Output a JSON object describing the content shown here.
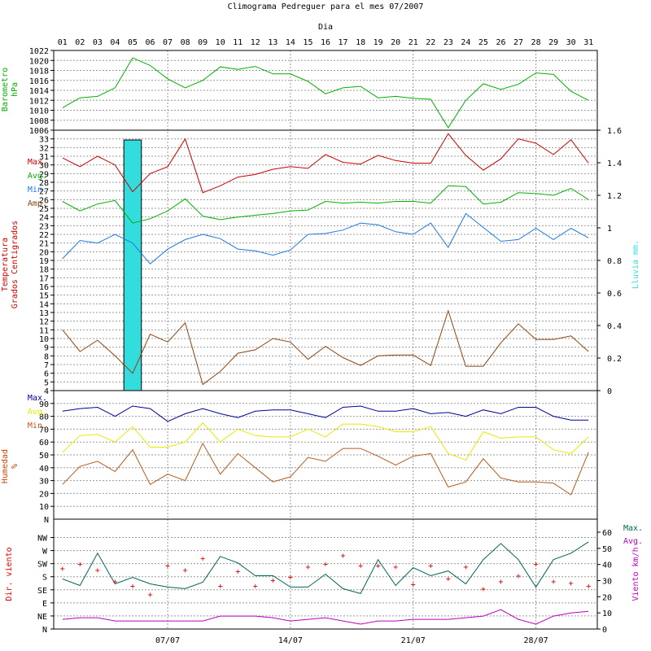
{
  "chart_data": {
    "type": "line",
    "title": "Climograma Pedreguer para el mes 07/2007",
    "x_label": "Dia",
    "days": [
      "01",
      "02",
      "03",
      "04",
      "05",
      "06",
      "07",
      "08",
      "09",
      "10",
      "11",
      "12",
      "13",
      "14",
      "15",
      "16",
      "17",
      "18",
      "19",
      "20",
      "21",
      "22",
      "23",
      "24",
      "25",
      "26",
      "27",
      "28",
      "29",
      "30",
      "31"
    ],
    "week_labels": [
      "07/07",
      "14/07",
      "21/07",
      "28/07"
    ],
    "grid": true,
    "panels": [
      {
        "id": "pressure",
        "y_label": [
          "Barometro",
          "hPa"
        ],
        "ylim": [
          1006,
          1022
        ],
        "ticks": [
          1006,
          1008,
          1010,
          1012,
          1014,
          1016,
          1018,
          1020,
          1022
        ],
        "series": [
          {
            "name": "",
            "color": "#00b000",
            "values": [
              1010.5,
              1012.5,
              1012.8,
              1014.5,
              1020.5,
              1019.0,
              1016.3,
              1014.5,
              1016.0,
              1018.7,
              1018.2,
              1018.8,
              1017.3,
              1017.3,
              1015.8,
              1013.3,
              1014.5,
              1014.8,
              1012.5,
              1012.8,
              1012.4,
              1012.2,
              1006.5,
              1012.0,
              1015.3,
              1014.2,
              1015.2,
              1017.5,
              1017.2,
              1013.8,
              1012.0
            ]
          }
        ]
      },
      {
        "id": "temperature",
        "y_label": [
          "Temperatura",
          "Grados Centigrados"
        ],
        "ylim": [
          4,
          34
        ],
        "ticks": [
          4,
          5,
          6,
          7,
          8,
          9,
          10,
          11,
          12,
          13,
          14,
          15,
          16,
          17,
          18,
          19,
          20,
          21,
          22,
          23,
          24,
          25,
          26,
          27,
          28,
          29,
          30,
          31,
          32,
          33
        ],
        "right_label": "Lluvia mm.",
        "right_ylim": [
          0,
          1.6
        ],
        "right_ticks": [
          0,
          0.2,
          0.4,
          0.6,
          0.8,
          1,
          1.2,
          1.4,
          1.6
        ],
        "rain": {
          "color": "#33dddd",
          "values": [
            0,
            0,
            0,
            0,
            1.54,
            0,
            0,
            0,
            0,
            0,
            0,
            0,
            0,
            0,
            0,
            0,
            0,
            0,
            0,
            0,
            0,
            0,
            0,
            0,
            0,
            0,
            0,
            0,
            0,
            0,
            0
          ]
        },
        "series": [
          {
            "name": "Max.",
            "color": "#cc0000",
            "values": [
              30.8,
              29.8,
              31.0,
              30.0,
              26.9,
              29.0,
              29.8,
              33.0,
              26.8,
              27.6,
              28.6,
              28.9,
              29.5,
              29.8,
              29.6,
              31.2,
              30.3,
              30.1,
              31.1,
              30.5,
              30.2,
              30.2,
              33.6,
              31.1,
              29.4,
              30.7,
              33.0,
              32.5,
              31.2,
              32.9,
              30.2
            ]
          },
          {
            "name": "Avg.",
            "color": "#00b000",
            "values": [
              25.8,
              24.7,
              25.5,
              25.9,
              23.3,
              23.8,
              24.7,
              26.1,
              24.1,
              23.7,
              24.0,
              24.2,
              24.4,
              24.7,
              24.8,
              25.8,
              25.6,
              25.7,
              25.6,
              25.8,
              25.8,
              25.6,
              27.6,
              27.5,
              25.5,
              25.7,
              26.8,
              26.7,
              26.5,
              27.3,
              26.0
            ]
          },
          {
            "name": "Min.",
            "color": "#1e7ae0",
            "values": [
              19.2,
              21.3,
              21.0,
              22.0,
              21.0,
              18.6,
              20.3,
              21.4,
              22.0,
              21.5,
              20.3,
              20.1,
              19.6,
              20.2,
              22.0,
              22.1,
              22.5,
              23.3,
              23.1,
              22.3,
              22.0,
              23.3,
              20.5,
              24.4,
              22.8,
              21.2,
              21.4,
              22.7,
              21.4,
              22.7,
              21.6
            ]
          },
          {
            "name": "Amp.",
            "color": "#8b4513",
            "values": [
              11.0,
              8.5,
              9.8,
              8.0,
              6.0,
              10.5,
              9.6,
              11.8,
              4.7,
              6.2,
              8.3,
              8.7,
              10.0,
              9.6,
              7.6,
              9.1,
              7.8,
              6.9,
              8.0,
              8.1,
              8.1,
              6.9,
              13.2,
              6.8,
              6.8,
              9.5,
              11.7,
              9.9,
              9.9,
              10.3,
              8.5
            ]
          }
        ]
      },
      {
        "id": "humidity",
        "y_label": [
          "Humedad",
          "%"
        ],
        "ylim": [
          0,
          100
        ],
        "ticks": [
          10,
          20,
          30,
          40,
          50,
          60,
          70,
          80,
          90
        ],
        "top_label": "N",
        "series": [
          {
            "name": "Max.",
            "color": "#000099",
            "values": [
              84,
              86,
              87,
              80,
              88,
              86,
              76,
              82,
              86,
              82,
              79,
              84,
              85,
              85,
              82,
              79,
              87,
              88,
              84,
              84,
              86,
              82,
              83,
              80,
              85,
              82,
              87,
              87,
              80,
              77,
              77
            ]
          },
          {
            "name": "Avg.",
            "color": "#e8e800",
            "values": [
              52,
              65,
              66,
              60,
              72,
              56,
              56,
              60,
              75,
              60,
              70,
              65,
              64,
              64,
              70,
              64,
              74,
              74,
              72,
              68,
              68,
              72,
              51,
              46,
              68,
              63,
              64,
              64,
              54,
              51,
              64
            ]
          },
          {
            "name": "Min.",
            "color": "#b85a1a",
            "values": [
              27,
              41,
              45,
              37,
              54,
              27,
              35,
              30,
              59,
              35,
              51,
              40,
              29,
              33,
              48,
              45,
              55,
              55,
              49,
              42,
              49,
              51,
              25,
              29,
              47,
              32,
              29,
              29,
              28,
              19,
              52
            ]
          }
        ]
      },
      {
        "id": "wind",
        "y_label": [
          "Dir. viento"
        ],
        "dir_labels": [
          "N",
          "NE",
          "E",
          "SE",
          "S",
          "SW",
          "W",
          "NW"
        ],
        "right_label": "Viento km/h",
        "right_ylim": [
          0,
          60
        ],
        "right_ticks": [
          0,
          10,
          20,
          30,
          40,
          50,
          60
        ],
        "direction": {
          "marker": "+",
          "color": "#e00000",
          "values_deg": [
            210,
            225,
            205,
            165,
            150,
            120,
            220,
            205,
            245,
            150,
            200,
            150,
            170,
            180,
            215,
            225,
            255,
            220,
            220,
            215,
            155,
            220,
            175,
            215,
            140,
            165,
            185,
            225,
            165,
            160,
            150
          ]
        },
        "series": [
          {
            "name": "Max.",
            "color": "#006655",
            "values": [
              31,
              27,
              47,
              28,
              32,
              28,
              26,
              25,
              29,
              45,
              41,
              33,
              33,
              26,
              26,
              34,
              25,
              22,
              43,
              27,
              38,
              33,
              36,
              28,
              43,
              53,
              43,
              26,
              43,
              47,
              54
            ]
          },
          {
            "name": "Avg.",
            "color": "#bb00bb",
            "values": [
              6,
              7,
              7,
              5,
              5,
              5,
              5,
              5,
              5,
              8,
              8,
              8,
              7,
              5,
              6,
              7,
              5,
              3,
              5,
              5,
              6,
              6,
              6,
              7,
              8,
              12,
              6,
              3,
              8,
              10,
              11
            ]
          }
        ]
      }
    ]
  }
}
